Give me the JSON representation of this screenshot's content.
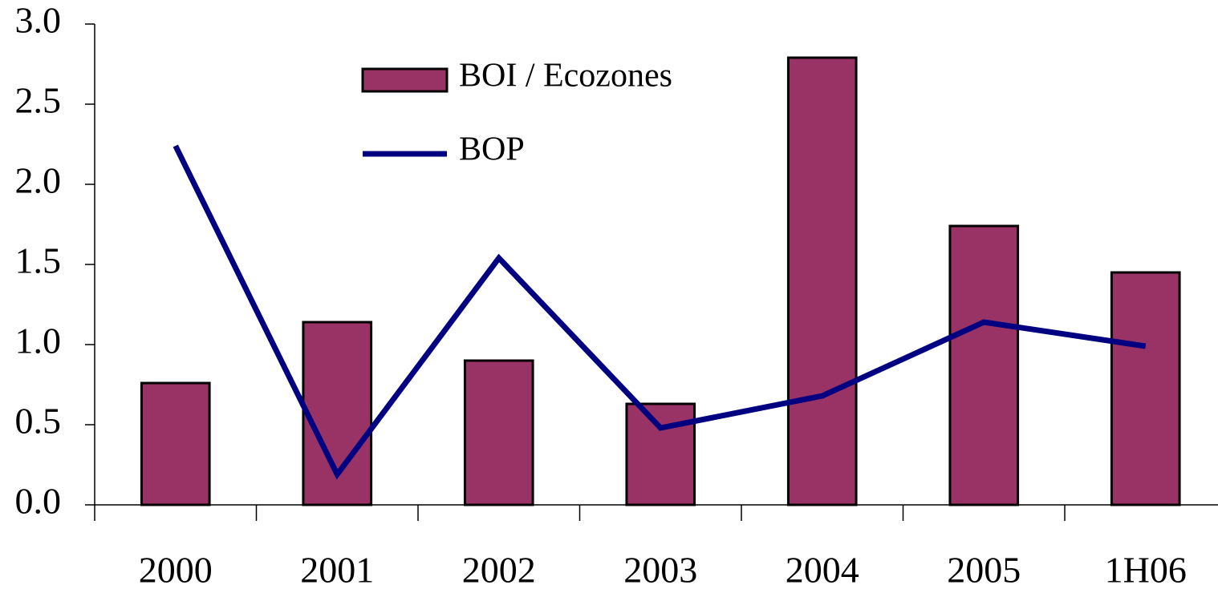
{
  "chart_data": {
    "type": "bar_line",
    "categories": [
      "2000",
      "2001",
      "2002",
      "2003",
      "2004",
      "2005",
      "1H06"
    ],
    "series": [
      {
        "name": "BOI / Ecozones",
        "type": "bar",
        "color": "#993366",
        "values": [
          0.76,
          1.14,
          0.9,
          0.63,
          2.79,
          1.74,
          1.45
        ]
      },
      {
        "name": "BOP",
        "type": "line",
        "color": "#000080",
        "values": [
          2.24,
          0.19,
          1.54,
          0.48,
          0.68,
          1.14,
          0.99
        ]
      }
    ],
    "ylim": [
      0,
      3
    ],
    "yticks": [
      {
        "value": 0,
        "label": "0.0"
      },
      0.5,
      {
        "value": 1,
        "label": "1.0"
      },
      1.5,
      {
        "value": 2,
        "label": "2.0"
      },
      2.5,
      {
        "value": 3,
        "label": "3.0"
      }
    ],
    "grid": false
  }
}
